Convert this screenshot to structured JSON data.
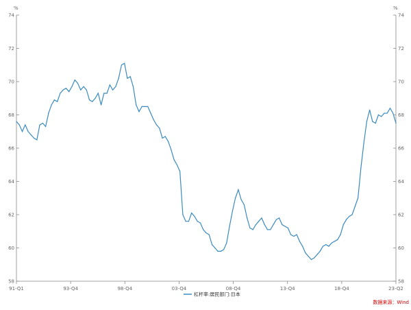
{
  "chart_data": {
    "type": "line",
    "y_unit_left": "%",
    "y_unit_right": "%",
    "ylim": [
      58,
      74
    ],
    "yticks": [
      "58",
      "60",
      "62",
      "64",
      "66",
      "68",
      "70",
      "72",
      "74"
    ],
    "xtick_labels": [
      "91-Q1",
      "93-Q4",
      "98-Q4",
      "03-Q4",
      "08-Q4",
      "13-Q4",
      "18-Q4",
      "23-Q2"
    ],
    "grid": false,
    "legend_position": "bottom",
    "series": [
      {
        "name": "杠杆率:居民部门:日本",
        "color": "#3a8ac0",
        "values": [
          67.6,
          67.4,
          67.0,
          67.4,
          67.0,
          66.8,
          66.6,
          66.5,
          67.4,
          67.5,
          67.3,
          68.1,
          68.6,
          68.9,
          68.8,
          69.3,
          69.5,
          69.6,
          69.4,
          69.7,
          70.1,
          69.9,
          69.5,
          69.7,
          69.5,
          68.9,
          68.8,
          69.0,
          69.3,
          68.6,
          69.3,
          69.3,
          69.8,
          69.5,
          69.7,
          70.2,
          71.0,
          71.1,
          70.2,
          70.3,
          69.7,
          68.6,
          68.2,
          68.5,
          68.5,
          68.5,
          68.1,
          67.7,
          67.4,
          67.2,
          66.6,
          66.7,
          66.4,
          65.9,
          65.3,
          65.0,
          64.6,
          62.0,
          61.6,
          61.6,
          62.1,
          61.9,
          61.6,
          61.5,
          61.1,
          60.9,
          60.8,
          60.2,
          60.0,
          59.8,
          59.8,
          59.9,
          60.3,
          61.3,
          62.2,
          63.0,
          63.5,
          62.9,
          62.6,
          61.8,
          61.2,
          61.1,
          61.4,
          61.6,
          61.8,
          61.4,
          61.1,
          61.1,
          61.4,
          61.7,
          61.8,
          61.4,
          61.3,
          61.2,
          60.8,
          60.7,
          60.8,
          60.4,
          60.1,
          59.7,
          59.5,
          59.3,
          59.4,
          59.6,
          59.8,
          60.1,
          60.2,
          60.1,
          60.3,
          60.4,
          60.5,
          60.8,
          61.4,
          61.7,
          61.9,
          62.0,
          62.5,
          63.0,
          64.8,
          66.3,
          67.6,
          68.3,
          67.6,
          67.5,
          68.0,
          67.9,
          68.1,
          68.1,
          68.4,
          68.1,
          67.5
        ]
      }
    ]
  },
  "source_note": "数据来源：Wind"
}
